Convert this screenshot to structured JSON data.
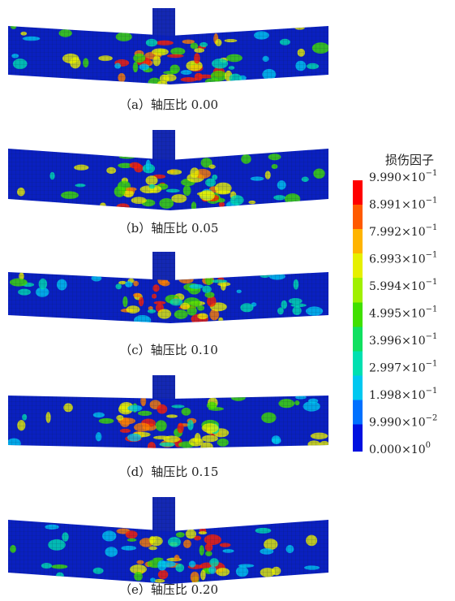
{
  "figure": {
    "captions": [
      "（a）轴压比 0.00",
      "（b）轴压比 0.05",
      "（c）轴压比 0.10",
      "（d）轴压比 0.15",
      "（e）轴压比 0.20"
    ],
    "legend": {
      "title": "损伤因子",
      "labels": [
        {
          "base": "9.990×10",
          "exp": "−1"
        },
        {
          "base": "8.991×10",
          "exp": "−1"
        },
        {
          "base": "7.992×10",
          "exp": "−1"
        },
        {
          "base": "6.993×10",
          "exp": "−1"
        },
        {
          "base": "5.994×10",
          "exp": "−1"
        },
        {
          "base": "4.995×10",
          "exp": "−1"
        },
        {
          "base": "3.996×10",
          "exp": "−1"
        },
        {
          "base": "2.997×10",
          "exp": "−1"
        },
        {
          "base": "1.998×10",
          "exp": "−1"
        },
        {
          "base": "9.990×10",
          "exp": "−2"
        },
        {
          "base": "0.000×10",
          "exp": "0"
        }
      ]
    }
  }
}
